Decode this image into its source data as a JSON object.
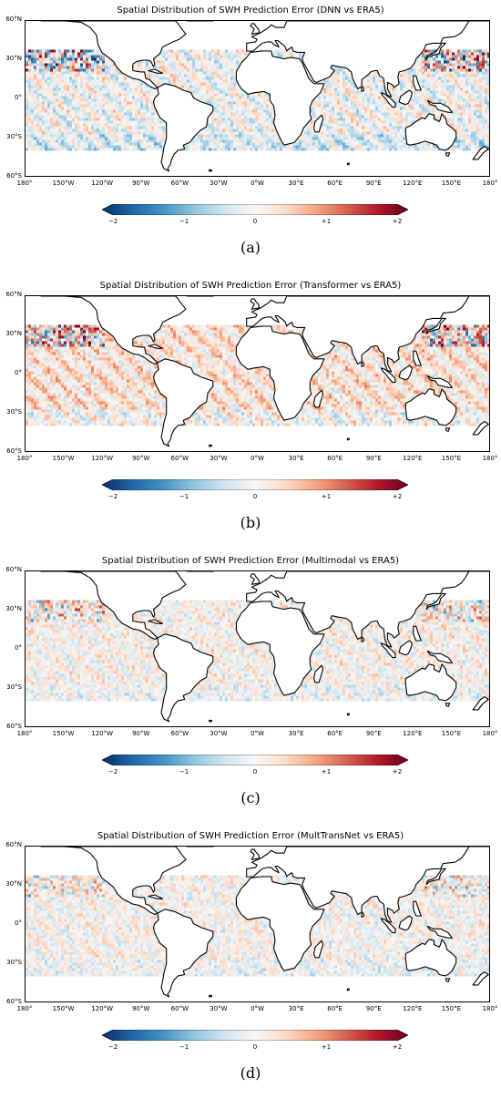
{
  "panels": [
    {
      "title": "Spatial Distribution of SWH Prediction Error (DNN vs ERA5)",
      "label": "(a)",
      "bias": -0.05,
      "intensity": 1.0
    },
    {
      "title": "Spatial Distribution of SWH Prediction Error (Transformer vs ERA5)",
      "label": "(b)",
      "bias": 0.25,
      "intensity": 1.0
    },
    {
      "title": "Spatial Distribution of SWH Prediction Error (Multimodal vs ERA5)",
      "label": "(c)",
      "bias": 0.05,
      "intensity": 0.55
    },
    {
      "title": "Spatial Distribution of SWH Prediction Error (MultTransNet vs ERA5)",
      "label": "(d)",
      "bias": 0.02,
      "intensity": 0.45
    }
  ],
  "map": {
    "lat_labels": [
      "60°N",
      "30°N",
      "0°",
      "30°S",
      "60°S"
    ],
    "lon_labels": [
      "180°",
      "150°W",
      "120°W",
      "90°W",
      "60°W",
      "30°W",
      "0°W",
      "30°E",
      "60°E",
      "90°E",
      "120°E",
      "150°E",
      "180°"
    ],
    "lat_range": [
      -60,
      60
    ],
    "lon_range": [
      -180,
      180
    ],
    "data_lat_range": [
      -38,
      38
    ]
  },
  "colorbar": {
    "ticks": [
      "−2",
      "−1",
      "0",
      "+1",
      "+2"
    ],
    "range": [
      -2,
      2
    ],
    "colormap": "RdBu_r",
    "colors": [
      "#053061",
      "#2166ac",
      "#4393c3",
      "#92c5de",
      "#d1e5f0",
      "#f7f7f7",
      "#fddbc7",
      "#f4a582",
      "#d6604d",
      "#b2182b",
      "#67001f"
    ]
  }
}
